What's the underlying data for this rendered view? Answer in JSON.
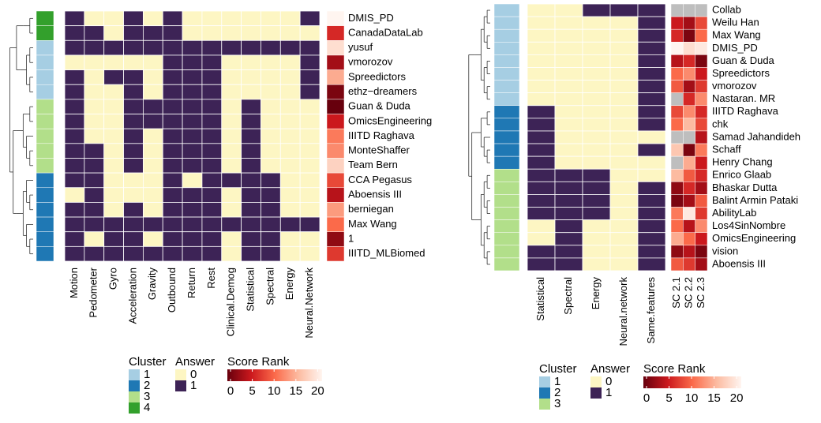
{
  "chart_data": [
    {
      "type": "heatmap",
      "rows": [
        "DMIS_PD",
        "CanadaDataLab",
        "yusuf",
        "vmorozov",
        "Spreedictors",
        "ethz−dreamers",
        "Guan & Duda",
        "OmicsEngineering",
        "IIITD Raghava",
        "MonteShaffer",
        "Team Bern",
        "CCA Pegasus",
        "Aboensis III",
        "berniegan",
        "Max Wang",
        "1",
        "IIITD_MLBiomed"
      ],
      "columns": [
        "Motion",
        "Pedometer",
        "Gyro",
        "Acceleration",
        "Gravity",
        "Outbound",
        "Return",
        "Rest",
        "Clinical.Demog",
        "Statistical",
        "Spectral",
        "Energy",
        "Neural.Network"
      ],
      "values": [
        [
          1,
          0,
          0,
          1,
          0,
          1,
          0,
          0,
          0,
          0,
          0,
          0,
          1
        ],
        [
          1,
          1,
          0,
          1,
          1,
          1,
          0,
          0,
          0,
          0,
          0,
          0,
          0
        ],
        [
          1,
          1,
          1,
          1,
          1,
          1,
          1,
          1,
          1,
          1,
          1,
          1,
          1
        ],
        [
          0,
          0,
          0,
          0,
          0,
          1,
          1,
          1,
          0,
          0,
          0,
          0,
          1
        ],
        [
          1,
          0,
          1,
          1,
          0,
          1,
          1,
          1,
          0,
          0,
          0,
          0,
          1
        ],
        [
          1,
          0,
          0,
          1,
          0,
          1,
          1,
          1,
          0,
          0,
          0,
          0,
          1
        ],
        [
          1,
          0,
          0,
          1,
          1,
          1,
          1,
          1,
          0,
          1,
          0,
          0,
          0
        ],
        [
          1,
          0,
          0,
          1,
          1,
          1,
          1,
          1,
          0,
          1,
          0,
          0,
          0
        ],
        [
          1,
          0,
          0,
          1,
          0,
          1,
          1,
          1,
          0,
          1,
          0,
          0,
          0
        ],
        [
          1,
          1,
          0,
          1,
          0,
          1,
          1,
          1,
          0,
          1,
          0,
          0,
          0
        ],
        [
          1,
          1,
          0,
          1,
          0,
          1,
          1,
          1,
          0,
          1,
          0,
          0,
          0
        ],
        [
          1,
          1,
          0,
          0,
          0,
          1,
          0,
          1,
          1,
          1,
          1,
          0,
          0
        ],
        [
          0,
          1,
          0,
          0,
          0,
          1,
          1,
          1,
          0,
          1,
          1,
          0,
          0
        ],
        [
          1,
          1,
          0,
          1,
          0,
          1,
          1,
          1,
          0,
          1,
          1,
          0,
          0
        ],
        [
          1,
          1,
          1,
          1,
          1,
          1,
          1,
          1,
          1,
          1,
          1,
          1,
          1
        ],
        [
          1,
          0,
          1,
          1,
          0,
          1,
          1,
          1,
          0,
          1,
          1,
          0,
          0
        ],
        [
          1,
          1,
          1,
          1,
          1,
          1,
          1,
          1,
          0,
          1,
          1,
          0,
          0
        ]
      ],
      "clusters": [
        4,
        4,
        1,
        1,
        1,
        1,
        3,
        3,
        3,
        3,
        3,
        2,
        2,
        2,
        2,
        2,
        2
      ],
      "cluster_title": "Cluster",
      "cluster_levels": [
        1,
        2,
        3,
        4
      ],
      "cluster_colors": [
        "#a6cee3",
        "#1f78b4",
        "#b2df8a",
        "#33a02c"
      ],
      "answer_title": "Answer",
      "answer_levels": [
        0,
        1
      ],
      "answer_colors": [
        "#fdf6c3",
        "#3d2356"
      ],
      "score_title": "Score Rank",
      "scores": [
        [
          20
        ],
        [
          6
        ],
        [
          18
        ],
        [
          3
        ],
        [
          14
        ],
        [
          1
        ],
        [
          0
        ],
        [
          5
        ],
        [
          11
        ],
        [
          12
        ],
        [
          17
        ],
        [
          8
        ],
        [
          4
        ],
        [
          13
        ],
        [
          10
        ],
        [
          2
        ],
        [
          7
        ]
      ],
      "score_lim": [
        0,
        20
      ],
      "score_ticks": [
        0,
        5,
        10,
        15,
        20
      ],
      "score_colors": [
        "#67000d",
        "#cb181d",
        "#fb6a4a",
        "#fcbba1",
        "#fff5f0"
      ],
      "na_color": "#bebebe"
    },
    {
      "type": "heatmap",
      "rows": [
        "Collab",
        "Weilu Han",
        "Max Wang",
        "DMIS_PD",
        "Guan & Duda",
        "Spreedictors",
        "vmorozov",
        "Nastaran. MR",
        "IIITD Raghava",
        "chk",
        "Samad Jahandideh",
        "Schaff",
        "Henry Chang",
        "Enrico Glaab",
        "Bhaskar Dutta",
        "Balint Armin Pataki",
        "AbilityLab",
        "Los4SinNombre",
        "OmicsEngineering",
        "vision",
        "Aboensis III"
      ],
      "columns": [
        "Statistical",
        "Spectral",
        "Energy",
        "Neural.network",
        "Same.features"
      ],
      "values": [
        [
          0,
          0,
          1,
          1,
          1
        ],
        [
          0,
          0,
          0,
          0,
          1
        ],
        [
          0,
          0,
          0,
          0,
          1
        ],
        [
          0,
          0,
          0,
          0,
          1
        ],
        [
          0,
          0,
          0,
          0,
          1
        ],
        [
          0,
          0,
          0,
          0,
          1
        ],
        [
          0,
          0,
          0,
          0,
          1
        ],
        [
          0,
          0,
          0,
          0,
          1
        ],
        [
          1,
          0,
          0,
          0,
          1
        ],
        [
          1,
          0,
          0,
          0,
          1
        ],
        [
          1,
          0,
          0,
          0,
          0
        ],
        [
          1,
          0,
          0,
          0,
          1
        ],
        [
          1,
          0,
          0,
          0,
          0
        ],
        [
          1,
          1,
          1,
          0,
          0
        ],
        [
          1,
          1,
          1,
          0,
          1
        ],
        [
          1,
          1,
          1,
          0,
          1
        ],
        [
          1,
          1,
          1,
          0,
          1
        ],
        [
          0,
          1,
          0,
          0,
          1
        ],
        [
          0,
          1,
          0,
          0,
          1
        ],
        [
          1,
          1,
          0,
          0,
          1
        ],
        [
          1,
          1,
          0,
          0,
          1
        ]
      ],
      "clusters": [
        1,
        1,
        1,
        1,
        1,
        1,
        1,
        1,
        2,
        2,
        2,
        2,
        2,
        3,
        3,
        3,
        3,
        3,
        3,
        3,
        3
      ],
      "cluster_title": "Cluster",
      "cluster_levels": [
        1,
        2,
        3
      ],
      "cluster_colors": [
        "#a6cee3",
        "#1f78b4",
        "#b2df8a"
      ],
      "answer_title": "Answer",
      "answer_levels": [
        0,
        1
      ],
      "answer_colors": [
        "#fdf6c3",
        "#3d2356"
      ],
      "score_title": "Score Rank",
      "score_columns": [
        "SC 2.1",
        "SC 2.2",
        "SC 2.3"
      ],
      "scores": [
        [
          null,
          null,
          null
        ],
        [
          5,
          3,
          8
        ],
        [
          6,
          1,
          10
        ],
        [
          20,
          18,
          19
        ],
        [
          4,
          6,
          1
        ],
        [
          10,
          12,
          5
        ],
        [
          9,
          3,
          7
        ],
        [
          null,
          6,
          12
        ],
        [
          8,
          12,
          6
        ],
        [
          10,
          15,
          8
        ],
        [
          null,
          null,
          4
        ],
        [
          16,
          1,
          11
        ],
        [
          null,
          14,
          5
        ],
        [
          15,
          9,
          6
        ],
        [
          2,
          6,
          3
        ],
        [
          1,
          3,
          9
        ],
        [
          11,
          19,
          7
        ],
        [
          10,
          4,
          12
        ],
        [
          14,
          10,
          5
        ],
        [
          2,
          4,
          1
        ],
        [
          9,
          7,
          3
        ]
      ],
      "score_lim": [
        0,
        20
      ],
      "score_ticks": [
        0,
        5,
        10,
        15,
        20
      ],
      "score_colors": [
        "#67000d",
        "#cb181d",
        "#fb6a4a",
        "#fcbba1",
        "#fff5f0"
      ],
      "na_color": "#bebebe"
    }
  ]
}
